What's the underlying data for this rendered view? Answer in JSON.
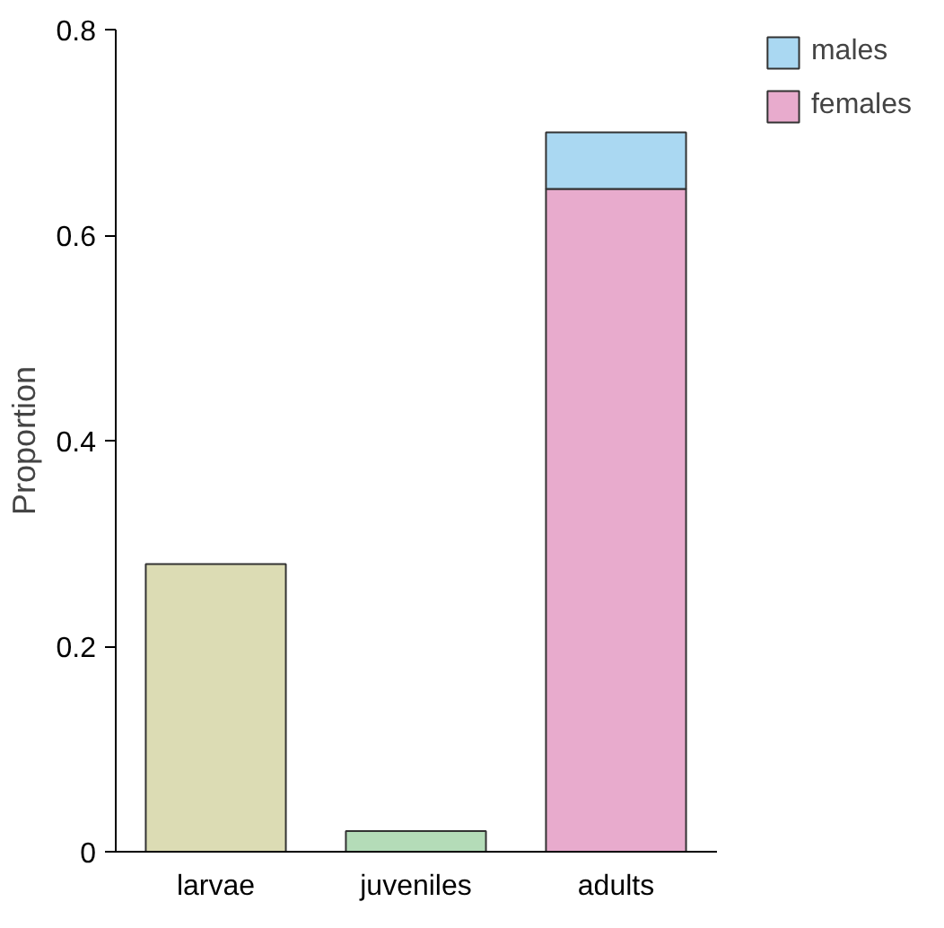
{
  "chart_data": {
    "type": "bar",
    "ylabel": "Proportion",
    "categories": [
      "larvae",
      "juveniles",
      "adults"
    ],
    "stacked": true,
    "series": [
      {
        "colors": [
          "#dcdcb4",
          "#b4dcb8",
          null
        ],
        "values": [
          0.28,
          0.02,
          null
        ]
      },
      {
        "name": "females",
        "color": "#e8abcd",
        "values": [
          null,
          null,
          0.645
        ]
      },
      {
        "name": "males",
        "color": "#aad8f2",
        "values": [
          null,
          null,
          0.055
        ]
      }
    ],
    "ylim": [
      0,
      0.8
    ],
    "yticks": [
      0,
      0.2,
      0.4,
      0.6,
      0.8
    ],
    "grid": false,
    "legend": "top right"
  }
}
